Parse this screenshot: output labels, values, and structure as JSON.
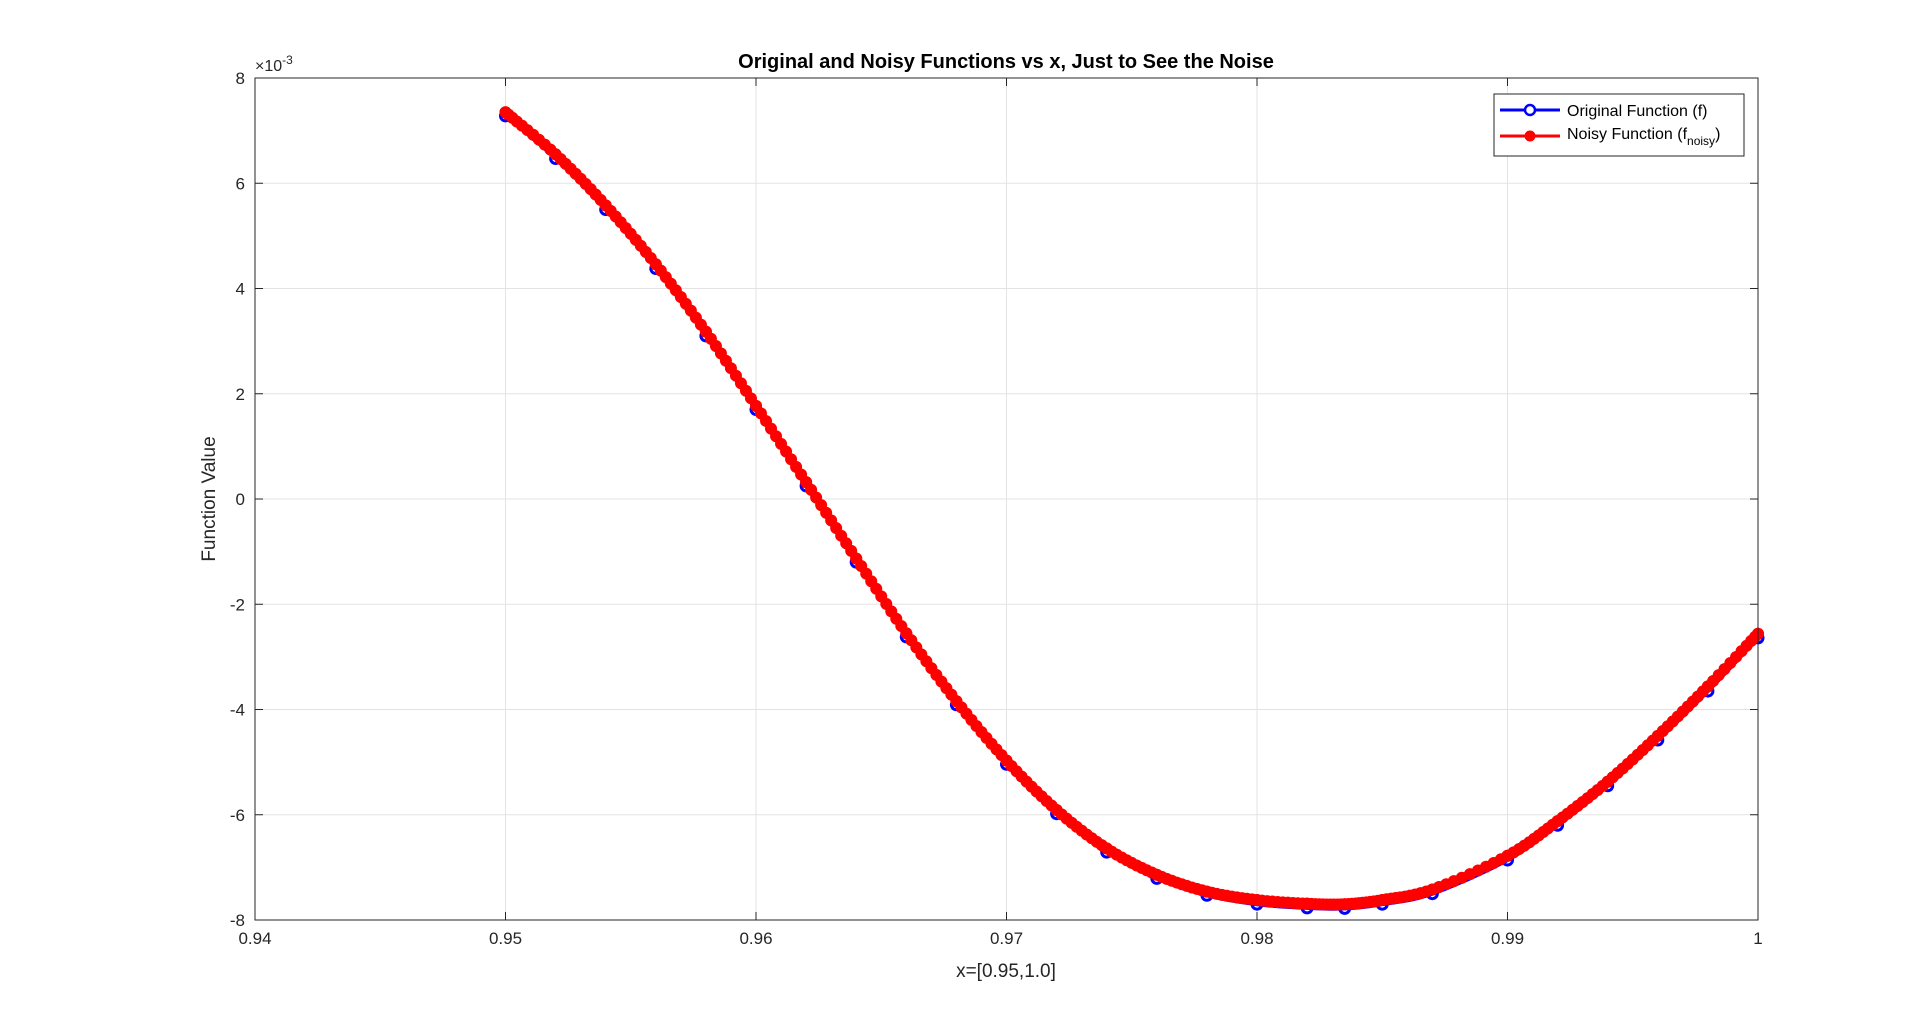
{
  "chart_data": {
    "type": "line",
    "title": "Original and Noisy Functions vs x, Just to See the Noise",
    "xlabel": "x=[0.95,1.0]",
    "ylabel": "Function Value",
    "xlim": [
      0.94,
      1.0
    ],
    "ylim": [
      -0.008,
      0.008
    ],
    "y_exponent_label": "×10",
    "y_exponent_power": "-3",
    "x_ticks": [
      0.94,
      0.95,
      0.96,
      0.97,
      0.98,
      0.99,
      1.0
    ],
    "x_tick_labels": [
      "0.94",
      "0.95",
      "0.96",
      "0.97",
      "0.98",
      "0.99",
      "1"
    ],
    "y_ticks": [
      -0.008,
      -0.006,
      -0.004,
      -0.002,
      0,
      0.002,
      0.004,
      0.006,
      0.008
    ],
    "y_tick_labels": [
      "-8",
      "-6",
      "-4",
      "-2",
      "0",
      "2",
      "4",
      "6",
      "8"
    ],
    "grid": true,
    "legend_position": "top-right",
    "legend": {
      "original": "Original Function (f)",
      "noisy_main": "Noisy Function (f",
      "noisy_sub": "noisy",
      "noisy_close": ")"
    },
    "series": [
      {
        "name": "Original Function (f)",
        "color": "#0000ff",
        "marker": "circle-open",
        "x": [
          0.95,
          0.952,
          0.954,
          0.956,
          0.958,
          0.96,
          0.962,
          0.964,
          0.966,
          0.968,
          0.97,
          0.972,
          0.974,
          0.976,
          0.978,
          0.98,
          0.982,
          0.9835,
          0.985,
          0.987,
          0.99,
          0.992,
          0.994,
          0.996,
          0.998,
          1.0
        ],
        "y": [
          0.00728,
          0.00647,
          0.0055,
          0.00438,
          0.0031,
          0.0017,
          0.00025,
          -0.0012,
          -0.00262,
          -0.00391,
          -0.00504,
          -0.00598,
          -0.00671,
          -0.00721,
          -0.00753,
          -0.0077,
          -0.00777,
          -0.00778,
          -0.0077,
          -0.0075,
          -0.00686,
          -0.0062,
          -0.00545,
          -0.00458,
          -0.00365,
          -0.00264
        ]
      },
      {
        "name": "Noisy Function (f_noisy)",
        "color": "#ff0000",
        "marker": "circle-filled",
        "x": [
          0.95,
          0.952,
          0.954,
          0.956,
          0.958,
          0.96,
          0.962,
          0.964,
          0.966,
          0.968,
          0.97,
          0.972,
          0.974,
          0.976,
          0.978,
          0.98,
          0.982,
          0.9835,
          0.985,
          0.987,
          0.99,
          0.992,
          0.994,
          0.996,
          0.998,
          1.0
        ],
        "y": [
          0.00735,
          0.00655,
          0.00558,
          0.00446,
          0.00318,
          0.00177,
          0.00032,
          -0.00113,
          -0.00255,
          -0.00384,
          -0.00497,
          -0.00591,
          -0.00664,
          -0.00714,
          -0.00746,
          -0.00762,
          -0.00769,
          -0.0077,
          -0.00762,
          -0.00742,
          -0.00678,
          -0.00612,
          -0.00537,
          -0.0045,
          -0.00356,
          -0.00256
        ]
      }
    ]
  }
}
